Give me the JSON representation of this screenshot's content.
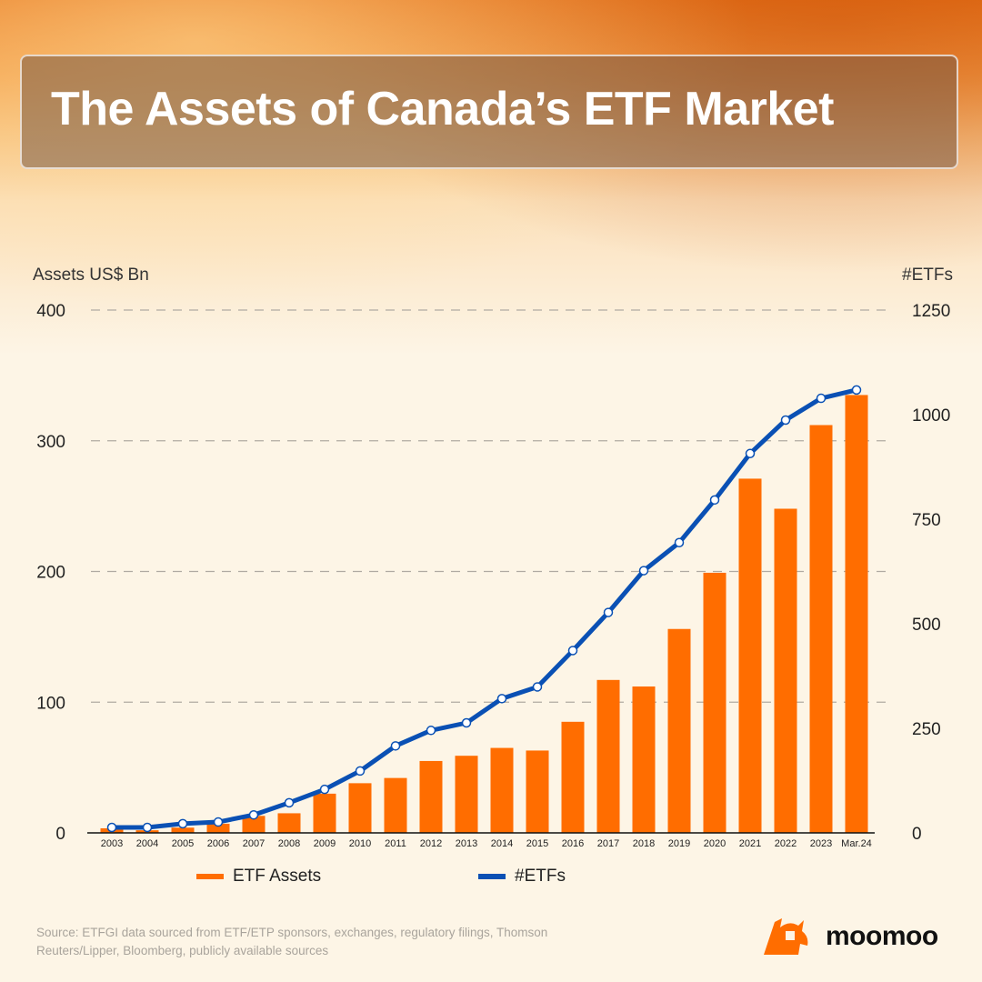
{
  "title": "The Assets of Canada’s ETF Market",
  "chart_data": {
    "type": "bar+line",
    "title": "The Assets of Canada’s ETF Market",
    "ylabel_left": "Assets US$ Bn",
    "ylabel_right": "#ETFs",
    "ylim_left": [
      0,
      400
    ],
    "ylim_right": [
      0,
      1250
    ],
    "yticks_left": [
      0,
      100,
      200,
      300,
      400
    ],
    "yticks_right": [
      0,
      250,
      500,
      750,
      1000,
      1250
    ],
    "grid": "horizontal dashed",
    "legend_position": "bottom",
    "categories": [
      "2003",
      "2004",
      "2005",
      "2006",
      "2007",
      "2008",
      "2009",
      "2010",
      "2011",
      "2012",
      "2013",
      "2014",
      "2015",
      "2016",
      "2017",
      "2018",
      "2019",
      "2020",
      "2021",
      "2022",
      "2023",
      "Mar.24"
    ],
    "series": [
      {
        "name": "ETF Assets",
        "type": "bar",
        "axis": "left",
        "color": "#ff6d00",
        "values": [
          3.5,
          2,
          4,
          7,
          13,
          15,
          30,
          38,
          42,
          55,
          59,
          65,
          63,
          85,
          117,
          112,
          156,
          199,
          271,
          248,
          312,
          335
        ]
      },
      {
        "name": "#ETFs",
        "type": "line",
        "axis": "right",
        "color": "#0a50b4",
        "values": [
          13,
          13,
          22,
          26,
          43,
          72,
          104,
          148,
          208,
          245,
          263,
          321,
          349,
          436,
          527,
          627,
          694,
          796,
          907,
          987,
          1039,
          1059
        ]
      }
    ]
  },
  "source": "Source: ETFGI data sourced from ETF/ETP sponsors, exchanges, regulatory filings, Thomson Reuters/Lipper, Bloomberg, publicly available sources",
  "brand": {
    "name": "moomoo",
    "color": "#ff6d00"
  }
}
